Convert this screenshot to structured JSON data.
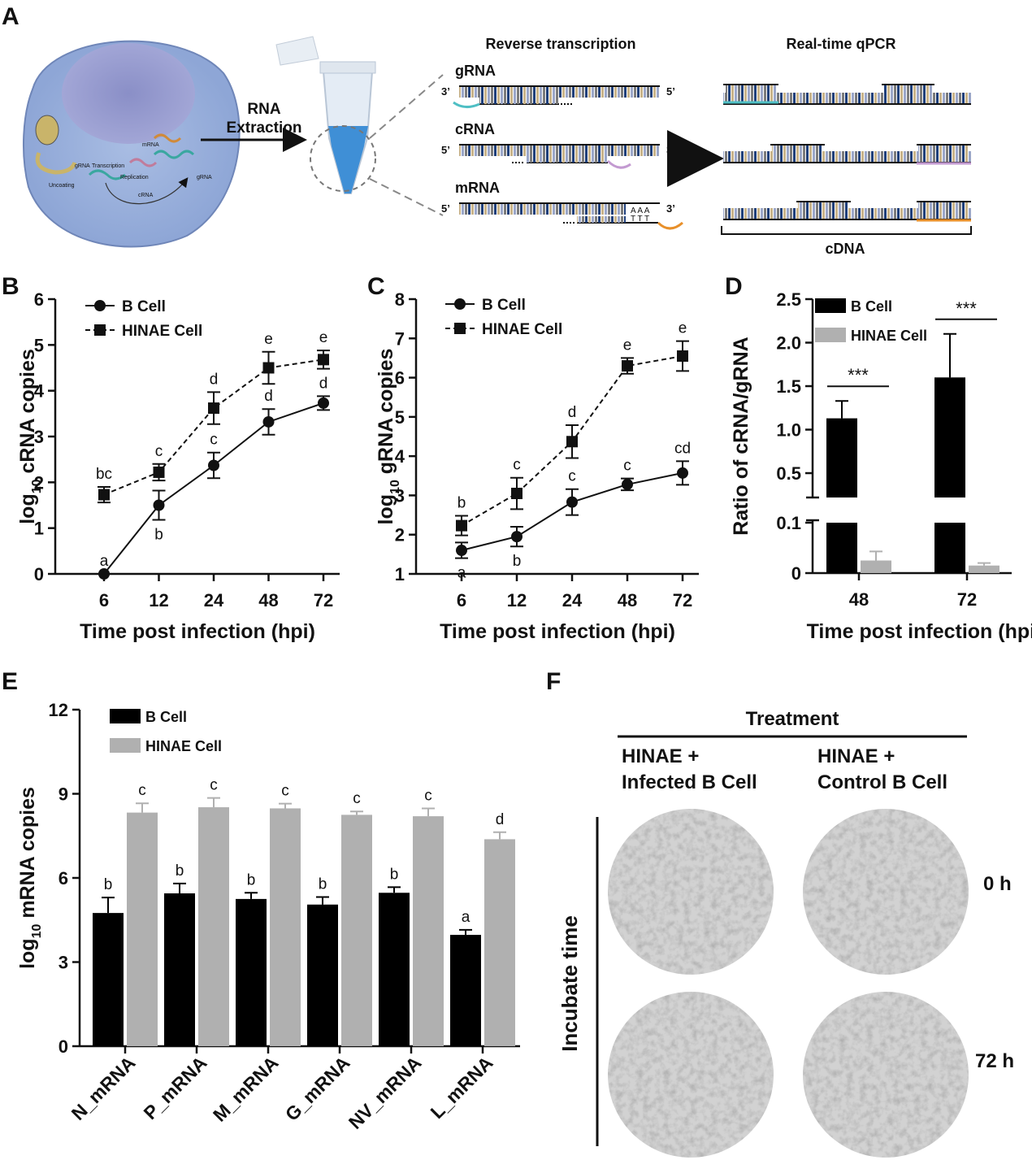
{
  "panel_labels": [
    "A",
    "B",
    "C",
    "D",
    "E",
    "F"
  ],
  "diagram": {
    "cell_labels": [
      "Uncoating",
      "gRNA",
      "Transcription",
      "mRNA",
      "Replication",
      "cRNA",
      "gRNA"
    ],
    "extraction": [
      "RNA",
      "Extraction"
    ],
    "columns": [
      "Reverse transcription",
      "Real-time qPCR"
    ],
    "strands": [
      {
        "name": "gRNA",
        "left": "3’",
        "right": "5’"
      },
      {
        "name": "cRNA",
        "left": "5’",
        "right": "3’"
      },
      {
        "name": "mRNA",
        "left": "5’",
        "right": "3’",
        "polya": "A A A",
        "polyt": "T T T"
      }
    ],
    "cdna": "cDNA"
  },
  "chart_data": [
    {
      "type": "line",
      "ylabel_parts": [
        "log",
        "10",
        " cRNA copies"
      ],
      "xlabel": "Time post infection (hpi)",
      "categories": [
        "6",
        "12",
        "24",
        "48",
        "72"
      ],
      "ylim": [
        0,
        6
      ],
      "yticks": [
        0,
        1,
        2,
        3,
        4,
        5,
        6
      ],
      "legend": "top-left",
      "series": [
        {
          "name": "B Cell",
          "color": "#111111",
          "marker": "circle",
          "dashed": false,
          "values": [
            0,
            1.5,
            2.37,
            3.32,
            3.73
          ],
          "errors": [
            0,
            0.32,
            0.28,
            0.28,
            0.15
          ],
          "letters": [
            "a",
            "b",
            "c",
            "d",
            "d"
          ]
        },
        {
          "name": "HINAE Cell",
          "color": "#111111",
          "marker": "square",
          "dashed": true,
          "values": [
            1.73,
            2.22,
            3.62,
            4.5,
            4.68
          ],
          "errors": [
            0.17,
            0.18,
            0.35,
            0.35,
            0.2
          ],
          "letters": [
            "bc",
            "c",
            "d",
            "e",
            "e"
          ]
        }
      ]
    },
    {
      "type": "line",
      "ylabel_parts": [
        "log",
        "10",
        " gRNA copies"
      ],
      "xlabel": "Time post infection (hpi)",
      "categories": [
        "6",
        "12",
        "24",
        "48",
        "72"
      ],
      "ylim": [
        1,
        8
      ],
      "yticks": [
        1,
        2,
        3,
        4,
        5,
        6,
        7,
        8
      ],
      "legend": "top-left",
      "series": [
        {
          "name": "B Cell",
          "color": "#111111",
          "marker": "circle",
          "dashed": false,
          "values": [
            1.6,
            1.95,
            2.83,
            3.28,
            3.57
          ],
          "errors": [
            0.2,
            0.25,
            0.33,
            0.15,
            0.3
          ],
          "letters": [
            "a",
            "b",
            "c",
            "c",
            "cd"
          ]
        },
        {
          "name": "HINAE Cell",
          "color": "#111111",
          "marker": "square",
          "dashed": true,
          "values": [
            2.23,
            3.05,
            4.37,
            6.3,
            6.55
          ],
          "errors": [
            0.25,
            0.4,
            0.42,
            0.2,
            0.38
          ],
          "letters": [
            "b",
            "c",
            "d",
            "e",
            "e"
          ]
        }
      ]
    },
    {
      "type": "bar",
      "ylabel_parts": [
        "Ratio of cRNA/gRNA"
      ],
      "xlabel": "Time post infection (hpi)",
      "categories": [
        "48",
        "72"
      ],
      "ylim": [
        0,
        2.5
      ],
      "ybreak": [
        0.1,
        0.22
      ],
      "yticks": [
        0,
        0.1,
        0.5,
        {
          "value": 1,
          "label": "1.0"
        },
        1.5,
        {
          "value": 2,
          "label": "2.0"
        },
        2.5
      ],
      "legend": "top-left",
      "series": [
        {
          "name": "B Cell",
          "color": "#000000",
          "values": [
            1.13,
            1.6
          ],
          "errors": [
            0.2,
            0.5
          ]
        },
        {
          "name": "HINAE Cell",
          "color": "#b0b0b0",
          "values": [
            0.025,
            0.015
          ],
          "errors": [
            0.018,
            0.005
          ]
        }
      ],
      "annotations": [
        "***",
        "***"
      ]
    },
    {
      "type": "bar",
      "ylabel_parts": [
        "log",
        "10",
        " mRNA copies"
      ],
      "categories": [
        "N_mRNA",
        "P_mRNA",
        "M_mRNA",
        "G_mRNA",
        "NV_mRNA",
        "L_mRNA"
      ],
      "ylim": [
        0,
        12
      ],
      "yticks": [
        0,
        3,
        6,
        9,
        12
      ],
      "legend": "top-left",
      "series": [
        {
          "name": "B Cell",
          "color": "#000000",
          "values": [
            4.75,
            5.45,
            5.25,
            5.05,
            5.47,
            3.97
          ],
          "errors": [
            0.55,
            0.35,
            0.22,
            0.27,
            0.2,
            0.18
          ],
          "letters": [
            "b",
            "b",
            "b",
            "b",
            "b",
            "a"
          ]
        },
        {
          "name": "HINAE Cell",
          "color": "#b0b0b0",
          "values": [
            8.33,
            8.52,
            8.48,
            8.25,
            8.2,
            7.38
          ],
          "errors": [
            0.33,
            0.33,
            0.17,
            0.12,
            0.28,
            0.25
          ],
          "letters": [
            "c",
            "c",
            "c",
            "c",
            "c",
            "d"
          ]
        }
      ]
    }
  ],
  "micrographs": {
    "header": "Treatment",
    "columns": [
      [
        "HINAE +",
        "Infected B Cell"
      ],
      [
        "HINAE +",
        "Control B Cell"
      ]
    ],
    "row_axis": "Incubate time",
    "rows": [
      "0 h",
      "72 h"
    ]
  }
}
